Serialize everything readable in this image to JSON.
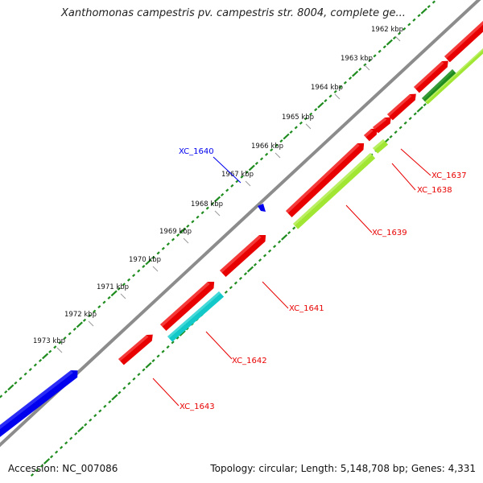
{
  "title": "Xanthomonas campestris pv. campestris str. 8004, complete ge...",
  "footer": {
    "accession": "Accession: NC_007086",
    "topology": "Topology: circular; Length: 5,148,708 bp; Genes: 4,331"
  },
  "ticks": [
    "1962 kbp",
    "1963 kbp",
    "1964 kbp",
    "1965 kbp",
    "1966 kbp",
    "1967 kbp",
    "1968 kbp",
    "1969 kbp",
    "1970 kbp",
    "1971 kbp",
    "1972 kbp",
    "1973 kbp"
  ],
  "genes": [
    {
      "label": "XC_1637",
      "color": "#e80000"
    },
    {
      "label": "XC_1638",
      "color": "#e80000"
    },
    {
      "label": "XC_1639",
      "color": "#e80000"
    },
    {
      "label": "XC_1640",
      "color": "#0000ee"
    },
    {
      "label": "XC_1641",
      "color": "#e80000"
    },
    {
      "label": "XC_1642",
      "color": "#e80000"
    },
    {
      "label": "XC_1643",
      "color": "#e80000"
    }
  ],
  "colors": {
    "backbone": "#8c8c8c",
    "gc_skew": "#1e8c1e",
    "cds_forward": "#e80000",
    "cds_highlight": "#0000ee",
    "feature_cyan": "#12c8c8",
    "feature_lime": "#a0e632",
    "feature_darkgreen": "#1e8c1e"
  }
}
